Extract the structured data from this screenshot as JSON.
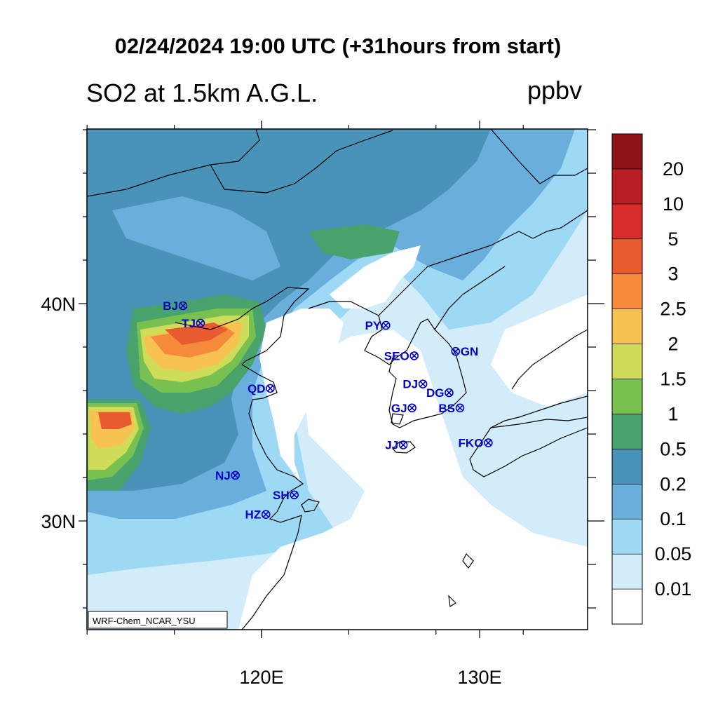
{
  "title": "02/24/2024 19:00 UTC (+31hours from start)",
  "subtitle": "SO2 at 1.5km A.G.L.",
  "units": "ppbv",
  "credit": "WRF-Chem_NCAR_YSU",
  "axes": {
    "lat_labels": [
      {
        "text": "40N",
        "lat": 40
      },
      {
        "text": "30N",
        "lat": 30
      }
    ],
    "lon_labels": [
      {
        "text": "120E",
        "lon": 120
      },
      {
        "text": "130E",
        "lon": 130
      }
    ]
  },
  "colorbar": {
    "levels": [
      "0.01",
      "0.05",
      "0.1",
      "0.2",
      "0.5",
      "1",
      "1.5",
      "2",
      "2.5",
      "3",
      "5",
      "10",
      "20"
    ],
    "colors": [
      "#ffffff",
      "#d2ecfa",
      "#9dd8f4",
      "#6aaedc",
      "#4a93b8",
      "#48a36c",
      "#78c050",
      "#cfdc5a",
      "#f8c252",
      "#f48a3a",
      "#e85a30",
      "#d82c2c",
      "#b81e22",
      "#8c1418"
    ]
  },
  "stations": [
    {
      "name": "BJ",
      "lon": 116.4,
      "lat": 39.9,
      "side": "left"
    },
    {
      "name": "TJ",
      "lon": 117.2,
      "lat": 39.1,
      "side": "left"
    },
    {
      "name": "QD",
      "lon": 120.4,
      "lat": 36.1,
      "side": "left"
    },
    {
      "name": "NJ",
      "lon": 118.8,
      "lat": 32.1,
      "side": "left"
    },
    {
      "name": "SH",
      "lon": 121.5,
      "lat": 31.2,
      "side": "left"
    },
    {
      "name": "HZ",
      "lon": 120.2,
      "lat": 30.3,
      "side": "left"
    },
    {
      "name": "PY",
      "lon": 125.7,
      "lat": 39.0,
      "side": "left"
    },
    {
      "name": "SEO",
      "lon": 127.0,
      "lat": 37.6,
      "side": "left"
    },
    {
      "name": "GN",
      "lon": 128.9,
      "lat": 37.8,
      "side": "right"
    },
    {
      "name": "DJ",
      "lon": 127.4,
      "lat": 36.3,
      "side": "left"
    },
    {
      "name": "DG",
      "lon": 128.6,
      "lat": 35.9,
      "side": "left"
    },
    {
      "name": "GJ",
      "lon": 126.9,
      "lat": 35.2,
      "side": "left"
    },
    {
      "name": "BS",
      "lon": 129.1,
      "lat": 35.2,
      "side": "left"
    },
    {
      "name": "JJ",
      "lon": 126.5,
      "lat": 33.5,
      "side": "left"
    },
    {
      "name": "FKO",
      "lon": 130.4,
      "lat": 33.6,
      "side": "left"
    }
  ]
}
